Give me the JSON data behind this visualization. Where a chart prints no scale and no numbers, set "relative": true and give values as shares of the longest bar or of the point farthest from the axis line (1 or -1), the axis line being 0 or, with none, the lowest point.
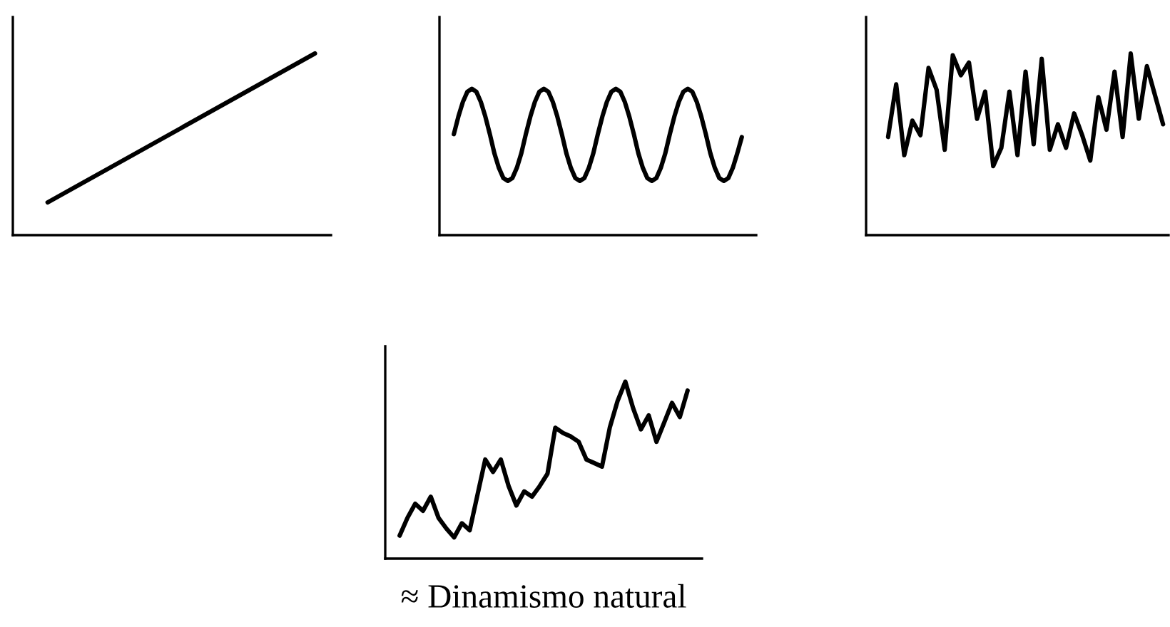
{
  "chart_data": [
    {
      "type": "line",
      "relative": true,
      "tick_labels": false,
      "categories": [
        null,
        null,
        null,
        null,
        null
      ],
      "series": [
        {
          "color": "#000000",
          "values": [
            0.18,
            0.385,
            0.59,
            0.795,
            1
          ]
        }
      ]
    },
    {
      "type": "line",
      "relative": true,
      "tick_labels": false,
      "categories": [
        null,
        null,
        null,
        null,
        null,
        null,
        null,
        null,
        null,
        null,
        null,
        null,
        null,
        null,
        null,
        null,
        null,
        null,
        null,
        null,
        null,
        null,
        null,
        null,
        null,
        null,
        null,
        null,
        null,
        null,
        null,
        null,
        null,
        null,
        null,
        null,
        null,
        null,
        null,
        null,
        null,
        null,
        null,
        null,
        null,
        null,
        null,
        null,
        null,
        null,
        null,
        null,
        null,
        null,
        null,
        null,
        null,
        null,
        null,
        null,
        null,
        null,
        null,
        null,
        null
      ],
      "series": [
        {
          "color": "#000000",
          "values": [
            0.69,
            0.81,
            0.91,
            0.98,
            1,
            0.98,
            0.91,
            0.81,
            0.69,
            0.56,
            0.46,
            0.39,
            0.37,
            0.39,
            0.46,
            0.56,
            0.69,
            0.81,
            0.91,
            0.98,
            1,
            0.98,
            0.91,
            0.81,
            0.69,
            0.56,
            0.46,
            0.39,
            0.37,
            0.39,
            0.46,
            0.56,
            0.69,
            0.81,
            0.91,
            0.98,
            1,
            0.98,
            0.91,
            0.81,
            0.69,
            0.56,
            0.46,
            0.39,
            0.37,
            0.39,
            0.46,
            0.56,
            0.69,
            0.81,
            0.91,
            0.98,
            1,
            0.98,
            0.91,
            0.81,
            0.69,
            0.56,
            0.46,
            0.39,
            0.37,
            0.39,
            0.46,
            0.56,
            0.67
          ]
        }
      ]
    },
    {
      "type": "line",
      "relative": true,
      "tick_labels": false,
      "categories": [
        null,
        null,
        null,
        null,
        null,
        null,
        null,
        null,
        null,
        null,
        null,
        null,
        null,
        null,
        null,
        null,
        null,
        null,
        null,
        null,
        null,
        null,
        null,
        null,
        null,
        null,
        null,
        null,
        null,
        null,
        null,
        null,
        null,
        null,
        null
      ],
      "series": [
        {
          "color": "#000000",
          "values": [
            0.54,
            0.83,
            0.44,
            0.63,
            0.55,
            0.92,
            0.8,
            0.47,
            0.99,
            0.88,
            0.95,
            0.64,
            0.79,
            0.38,
            0.48,
            0.79,
            0.44,
            0.9,
            0.5,
            0.97,
            0.47,
            0.61,
            0.48,
            0.67,
            0.55,
            0.41,
            0.76,
            0.58,
            0.9,
            0.54,
            1,
            0.64,
            0.93,
            0.77,
            0.61
          ]
        }
      ]
    },
    {
      "type": "line",
      "relative": true,
      "tick_labels": false,
      "annotations": [
        "≈ Dinamismo natural"
      ],
      "categories": [
        null,
        null,
        null,
        null,
        null,
        null,
        null,
        null,
        null,
        null,
        null,
        null,
        null,
        null,
        null,
        null,
        null,
        null,
        null,
        null,
        null,
        null,
        null,
        null,
        null,
        null,
        null,
        null,
        null,
        null,
        null,
        null,
        null,
        null,
        null,
        null,
        null,
        null
      ],
      "series": [
        {
          "color": "#000000",
          "values": [
            0.13,
            0.23,
            0.31,
            0.27,
            0.35,
            0.23,
            0.17,
            0.12,
            0.2,
            0.16,
            0.36,
            0.56,
            0.49,
            0.56,
            0.41,
            0.3,
            0.38,
            0.35,
            0.41,
            0.48,
            0.74,
            0.71,
            0.69,
            0.66,
            0.56,
            0.54,
            0.52,
            0.74,
            0.89,
            1,
            0.85,
            0.73,
            0.81,
            0.66,
            0.77,
            0.88,
            0.8,
            0.95
          ]
        }
      ]
    }
  ]
}
